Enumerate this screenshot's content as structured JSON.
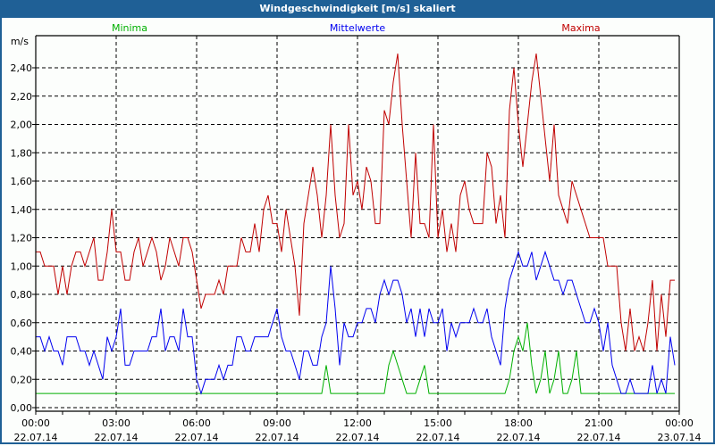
{
  "window": {
    "title": "Windgeschwindigkeit [m/s] skaliert"
  },
  "chart_data": {
    "type": "line",
    "title": "Windgeschwindigkeit [m/s] skaliert",
    "ylabel": "m/s",
    "xlabel": "",
    "ylim": [
      0,
      2.4
    ],
    "xlim_hours": [
      0,
      24
    ],
    "grid": true,
    "y_ticks": [
      {
        "value": 0.0,
        "label": "0,00"
      },
      {
        "value": 0.2,
        "label": "0,20"
      },
      {
        "value": 0.4,
        "label": "0,40"
      },
      {
        "value": 0.6,
        "label": "0,60"
      },
      {
        "value": 0.8,
        "label": "0,80"
      },
      {
        "value": 1.0,
        "label": "1,00"
      },
      {
        "value": 1.2,
        "label": "1,20"
      },
      {
        "value": 1.4,
        "label": "1,40"
      },
      {
        "value": 1.6,
        "label": "1,60"
      },
      {
        "value": 1.8,
        "label": "1,80"
      },
      {
        "value": 2.0,
        "label": "2,00"
      },
      {
        "value": 2.2,
        "label": "2,20"
      },
      {
        "value": 2.4,
        "label": "2,40"
      }
    ],
    "x_ticks": [
      {
        "hour": 0,
        "time": "00:00",
        "date": "22.07.14"
      },
      {
        "hour": 3,
        "time": "03:00",
        "date": "22.07.14"
      },
      {
        "hour": 6,
        "time": "06:00",
        "date": "22.07.14"
      },
      {
        "hour": 9,
        "time": "09:00",
        "date": "22.07.14"
      },
      {
        "hour": 12,
        "time": "12:00",
        "date": "22.07.14"
      },
      {
        "hour": 15,
        "time": "15:00",
        "date": "22.07.14"
      },
      {
        "hour": 18,
        "time": "18:00",
        "date": "22.07.14"
      },
      {
        "hour": 21,
        "time": "21:00",
        "date": "22.07.14"
      },
      {
        "hour": 24,
        "time": "00:00",
        "date": "23.07.14"
      }
    ],
    "interval_minutes": 10,
    "series": [
      {
        "name": "Minima",
        "color": "#00b000",
        "legend_position": "top-left",
        "values": [
          0.1,
          0.1,
          0.1,
          0.1,
          0.1,
          0.1,
          0.1,
          0.1,
          0.1,
          0.1,
          0.1,
          0.1,
          0.1,
          0.1,
          0.1,
          0.1,
          0.1,
          0.1,
          0.1,
          0.1,
          0.1,
          0.1,
          0.1,
          0.1,
          0.1,
          0.1,
          0.1,
          0.1,
          0.1,
          0.1,
          0.1,
          0.1,
          0.1,
          0.1,
          0.1,
          0.1,
          0.1,
          0.1,
          0.1,
          0.1,
          0.1,
          0.1,
          0.1,
          0.1,
          0.1,
          0.1,
          0.1,
          0.1,
          0.1,
          0.1,
          0.1,
          0.1,
          0.1,
          0.1,
          0.1,
          0.1,
          0.1,
          0.1,
          0.1,
          0.1,
          0.1,
          0.1,
          0.1,
          0.1,
          0.1,
          0.3,
          0.1,
          0.1,
          0.1,
          0.1,
          0.1,
          0.1,
          0.1,
          0.1,
          0.1,
          0.1,
          0.1,
          0.1,
          0.1,
          0.3,
          0.4,
          0.3,
          0.2,
          0.1,
          0.1,
          0.1,
          0.2,
          0.3,
          0.1,
          0.1,
          0.1,
          0.1,
          0.1,
          0.1,
          0.1,
          0.1,
          0.1,
          0.1,
          0.1,
          0.1,
          0.1,
          0.1,
          0.1,
          0.1,
          0.1,
          0.1,
          0.2,
          0.4,
          0.5,
          0.4,
          0.6,
          0.3,
          0.1,
          0.2,
          0.4,
          0.1,
          0.2,
          0.4,
          0.1,
          0.1,
          0.2,
          0.4,
          0.1,
          0.1,
          0.1,
          0.1,
          0.1,
          0.1,
          0.1,
          0.1,
          0.1,
          0.1,
          0.1,
          0.1,
          0.1,
          0.1,
          0.1,
          0.1,
          0.1,
          0.1,
          0.1,
          0.1,
          0.1,
          0.1
        ]
      },
      {
        "name": "Mittelwerte",
        "color": "#0000f0",
        "legend_position": "top-center",
        "values": [
          0.5,
          0.5,
          0.4,
          0.5,
          0.4,
          0.4,
          0.3,
          0.5,
          0.5,
          0.5,
          0.4,
          0.4,
          0.3,
          0.4,
          0.3,
          0.2,
          0.5,
          0.4,
          0.5,
          0.7,
          0.3,
          0.3,
          0.4,
          0.4,
          0.4,
          0.4,
          0.5,
          0.5,
          0.7,
          0.4,
          0.5,
          0.5,
          0.4,
          0.7,
          0.5,
          0.5,
          0.2,
          0.1,
          0.2,
          0.2,
          0.2,
          0.3,
          0.2,
          0.3,
          0.3,
          0.5,
          0.5,
          0.4,
          0.4,
          0.5,
          0.5,
          0.5,
          0.5,
          0.6,
          0.7,
          0.5,
          0.4,
          0.4,
          0.3,
          0.2,
          0.4,
          0.4,
          0.3,
          0.3,
          0.5,
          0.6,
          1.0,
          0.7,
          0.3,
          0.6,
          0.5,
          0.5,
          0.6,
          0.6,
          0.7,
          0.7,
          0.6,
          0.8,
          0.9,
          0.8,
          0.9,
          0.9,
          0.8,
          0.6,
          0.7,
          0.5,
          0.7,
          0.5,
          0.7,
          0.6,
          0.6,
          0.7,
          0.4,
          0.6,
          0.5,
          0.6,
          0.6,
          0.6,
          0.7,
          0.6,
          0.6,
          0.7,
          0.5,
          0.4,
          0.3,
          0.7,
          0.9,
          1.0,
          1.1,
          1.0,
          1.0,
          1.1,
          0.9,
          1.0,
          1.1,
          1.0,
          0.9,
          0.9,
          0.8,
          0.9,
          0.9,
          0.8,
          0.7,
          0.6,
          0.6,
          0.7,
          0.6,
          0.4,
          0.6,
          0.3,
          0.2,
          0.1,
          0.1,
          0.2,
          0.1,
          0.1,
          0.1,
          0.1,
          0.3,
          0.1,
          0.2,
          0.1,
          0.5,
          0.3
        ]
      },
      {
        "name": "Maxima",
        "color": "#c00000",
        "legend_position": "top-right",
        "values": [
          1.1,
          1.1,
          1.0,
          1.0,
          1.0,
          0.8,
          1.0,
          0.8,
          1.0,
          1.1,
          1.1,
          1.0,
          1.1,
          1.2,
          0.9,
          0.9,
          1.1,
          1.4,
          1.1,
          1.1,
          0.9,
          0.9,
          1.1,
          1.2,
          1.0,
          1.1,
          1.2,
          1.1,
          0.9,
          1.0,
          1.2,
          1.1,
          1.0,
          1.2,
          1.2,
          1.1,
          0.9,
          0.7,
          0.8,
          0.8,
          0.8,
          0.9,
          0.8,
          1.0,
          1.0,
          1.0,
          1.2,
          1.1,
          1.1,
          1.3,
          1.1,
          1.4,
          1.5,
          1.3,
          1.3,
          1.1,
          1.4,
          1.2,
          1.0,
          0.65,
          1.3,
          1.5,
          1.7,
          1.5,
          1.2,
          1.5,
          2.0,
          1.5,
          1.2,
          1.3,
          2.0,
          1.5,
          1.6,
          1.4,
          1.7,
          1.6,
          1.3,
          1.3,
          2.1,
          2.0,
          2.3,
          2.5,
          2.0,
          1.6,
          1.2,
          1.8,
          1.3,
          1.3,
          1.2,
          2.0,
          1.2,
          1.4,
          1.1,
          1.3,
          1.1,
          1.5,
          1.6,
          1.4,
          1.3,
          1.3,
          1.3,
          1.8,
          1.7,
          1.3,
          1.5,
          1.2,
          2.1,
          2.4,
          2.0,
          1.7,
          2.0,
          2.3,
          2.5,
          2.2,
          1.9,
          1.6,
          2.0,
          1.5,
          1.4,
          1.3,
          1.6,
          1.5,
          1.4,
          1.3,
          1.2,
          1.2,
          1.2,
          1.2,
          1.0,
          1.0,
          1.0,
          0.6,
          0.4,
          0.7,
          0.4,
          0.5,
          0.4,
          0.6,
          0.9,
          0.4,
          0.8,
          0.5,
          0.9,
          0.9
        ]
      }
    ]
  }
}
